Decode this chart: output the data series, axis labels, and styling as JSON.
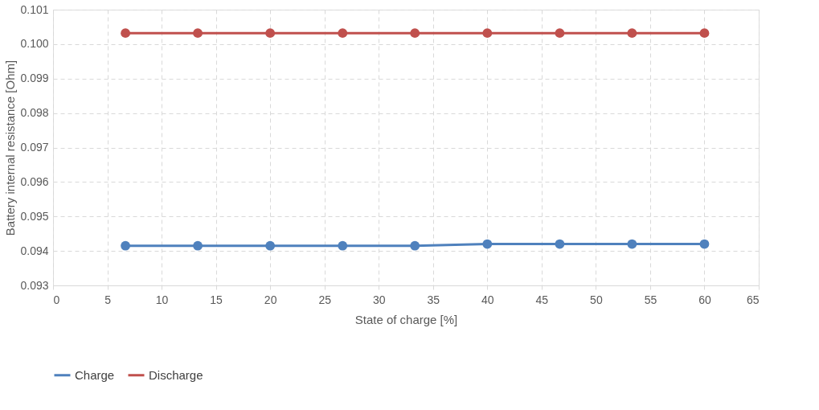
{
  "chart_data": {
    "type": "line",
    "xlabel": "State of charge [%]",
    "ylabel": "Battery internal resistance [Ohm]",
    "x": [
      6.67,
      13.33,
      20,
      26.67,
      33.33,
      40,
      46.67,
      53.33,
      60
    ],
    "series": [
      {
        "name": "Charge",
        "color": "#4f81bd",
        "values": [
          0.09415,
          0.09415,
          0.09415,
          0.09415,
          0.09415,
          0.0942,
          0.0942,
          0.0942,
          0.0942
        ]
      },
      {
        "name": "Discharge",
        "color": "#c0504d",
        "values": [
          0.10032,
          0.10032,
          0.10032,
          0.10032,
          0.10032,
          0.10032,
          0.10032,
          0.10032,
          0.10032
        ]
      }
    ],
    "xlim": [
      0,
      65
    ],
    "xticks": [
      0,
      5,
      10,
      15,
      20,
      25,
      30,
      35,
      40,
      45,
      50,
      55,
      60,
      65
    ],
    "ylim": [
      0.093,
      0.101
    ],
    "yticks": [
      {
        "value": 0.093,
        "label": "0.093"
      },
      {
        "value": 0.094,
        "label": "0.094"
      },
      {
        "value": 0.095,
        "label": "0.095"
      },
      {
        "value": 0.096,
        "label": "0.096"
      },
      {
        "value": 0.097,
        "label": "0.097"
      },
      {
        "value": 0.098,
        "label": "0.098"
      },
      {
        "value": 0.099,
        "label": "0.099"
      },
      {
        "value": 0.1,
        "label": "0.100"
      },
      {
        "value": 0.101,
        "label": "0.101"
      }
    ],
    "grid": true,
    "legend": "bottom",
    "marker": "circle",
    "line_style": "solid"
  }
}
